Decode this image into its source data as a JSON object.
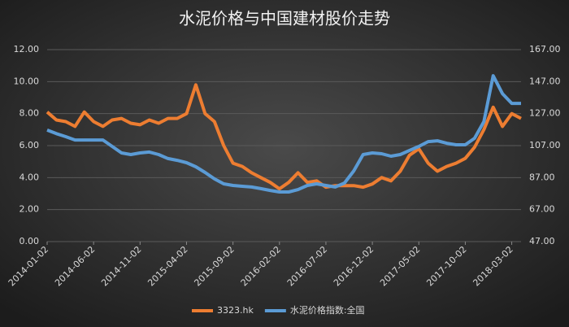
{
  "chart_data": {
    "type": "line",
    "title": "水泥价格与中国建材股价走势",
    "categories": [
      "2014-01-02",
      null,
      null,
      null,
      null,
      "2014-06-02",
      null,
      null,
      null,
      null,
      "2014-11-02",
      null,
      null,
      null,
      null,
      "2015-04-02",
      null,
      null,
      null,
      null,
      "2015-09-02",
      null,
      null,
      null,
      null,
      "2016-02-02",
      null,
      null,
      null,
      null,
      "2016-07-02",
      null,
      null,
      null,
      null,
      "2016-12-02",
      null,
      null,
      null,
      null,
      "2017-05-02",
      null,
      null,
      null,
      null,
      "2017-10-02",
      null,
      null,
      null,
      null,
      "2018-03-02",
      null
    ],
    "series": [
      {
        "name": "3323.hk",
        "color": "#ed7d31",
        "axis": "y",
        "values": [
          8.1,
          7.6,
          7.5,
          7.2,
          8.1,
          7.5,
          7.2,
          7.6,
          7.7,
          7.4,
          7.3,
          7.6,
          7.4,
          7.7,
          7.7,
          8.0,
          9.8,
          8.0,
          7.5,
          6.0,
          4.9,
          4.7,
          4.3,
          4.0,
          3.7,
          3.3,
          3.7,
          4.3,
          3.7,
          3.8,
          3.4,
          3.5,
          3.5,
          3.5,
          3.4,
          3.6,
          4.0,
          3.8,
          4.4,
          5.4,
          5.8,
          4.9,
          4.4,
          4.7,
          4.9,
          5.2,
          5.9,
          7.0,
          8.4,
          7.2,
          8.0,
          7.7
        ]
      },
      {
        "name": "水泥价格指数:全国",
        "color": "#5b9bd5",
        "axis": "y2",
        "values": [
          116.7,
          114.5,
          112.6,
          110.5,
          110.5,
          110.5,
          110.5,
          106.5,
          102.4,
          101.4,
          102.4,
          103,
          101.4,
          98.9,
          97.8,
          96.3,
          93.8,
          90.2,
          86.2,
          83.1,
          82.1,
          81.6,
          81.1,
          80.1,
          79,
          78,
          78,
          79.5,
          82.1,
          83.1,
          82.1,
          81.1,
          83.6,
          91.2,
          101.4,
          102.4,
          101.9,
          100.4,
          101.4,
          104,
          106.5,
          109.5,
          110,
          108.5,
          107.5,
          107.5,
          111.6,
          122,
          150.7,
          139.5,
          133.4,
          133.4
        ]
      }
    ],
    "ylim": [
      0,
      12
    ],
    "yticks": [
      {
        "value": 0,
        "label": "0.00"
      },
      {
        "value": 2,
        "label": "2.00"
      },
      {
        "value": 4,
        "label": "4.00"
      },
      {
        "value": 6,
        "label": "6.00"
      },
      {
        "value": 8,
        "label": "8.00"
      },
      {
        "value": 10,
        "label": "10.00"
      },
      {
        "value": 12,
        "label": "12.00"
      }
    ],
    "y2lim": [
      47,
      167
    ],
    "y2ticks": [
      {
        "value": 47,
        "label": "47.00"
      },
      {
        "value": 67,
        "label": "67.00"
      },
      {
        "value": 87,
        "label": "87.00"
      },
      {
        "value": 107,
        "label": "107.00"
      },
      {
        "value": 127,
        "label": "127.00"
      },
      {
        "value": 147,
        "label": "147.00"
      },
      {
        "value": 167,
        "label": "167.00"
      }
    ],
    "grid": true,
    "legend": "bottom"
  }
}
